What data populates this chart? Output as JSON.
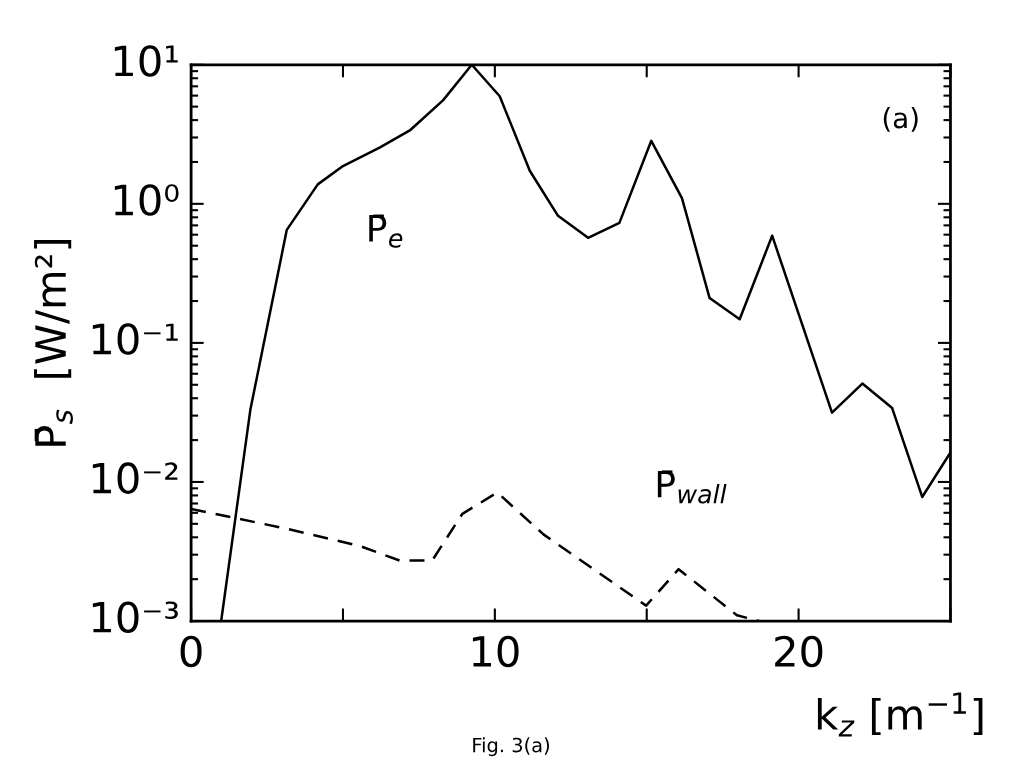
{
  "chart_data": {
    "type": "line",
    "xlabel": "k$_{z}$ [m$^{−1}$]",
    "ylabel": "P̄$_{s}$  [W/m²]",
    "log": "y",
    "grid": false,
    "marker": "none",
    "xlim": [
      0,
      25
    ],
    "xticks": [
      0,
      {
        "value": 5,
        "label": null
      },
      10,
      {
        "value": 15,
        "label": null
      },
      20,
      {
        "value": 25,
        "label": null
      }
    ],
    "ylim": [
      0.001,
      10
    ],
    "yticks": [
      {
        "value": 0.001,
        "label": "10⁻³"
      },
      {
        "value": 0.01,
        "label": "10⁻²"
      },
      {
        "value": 0.1,
        "label": "10⁻¹"
      },
      {
        "value": 1,
        "label": "10⁰"
      },
      {
        "value": 10,
        "label": "10¹"
      }
    ],
    "series": [
      {
        "name": "P̄$_{e}$",
        "color": "#000000",
        "line_style": "solid",
        "x": [
          0.99,
          1.95,
          3.15,
          4.17,
          5.0,
          6.22,
          7.2,
          8.3,
          9.24,
          10.16,
          11.15,
          12.08,
          13.07,
          14.1,
          15.15,
          16.16,
          17.07,
          18.06,
          19.13,
          21.1,
          22.1,
          23.08,
          24.07,
          25
        ],
        "values": [
          0.001,
          0.033,
          0.65,
          1.38,
          1.87,
          2.55,
          3.37,
          5.57,
          10,
          5.94,
          1.73,
          0.82,
          0.57,
          0.73,
          2.84,
          1.1,
          0.21,
          0.148,
          0.59,
          0.0315,
          0.051,
          0.034,
          0.0078,
          0.0163
        ]
      },
      {
        "name": "P̄$_{wall}$",
        "color": "#000000",
        "line_style": "dashed",
        "x": [
          0,
          3.17,
          5.56,
          6.87,
          7.94,
          8.93,
          10.08,
          11.6,
          14.98,
          16.05,
          17.97,
          18.7
        ],
        "values": [
          0.0064,
          0.0046,
          0.00346,
          0.00272,
          0.00273,
          0.0059,
          0.0084,
          0.0042,
          0.00129,
          0.00236,
          0.0011,
          0.001
        ]
      }
    ],
    "annotations": [
      "(a)",
      "Fig. 3(a)"
    ]
  }
}
